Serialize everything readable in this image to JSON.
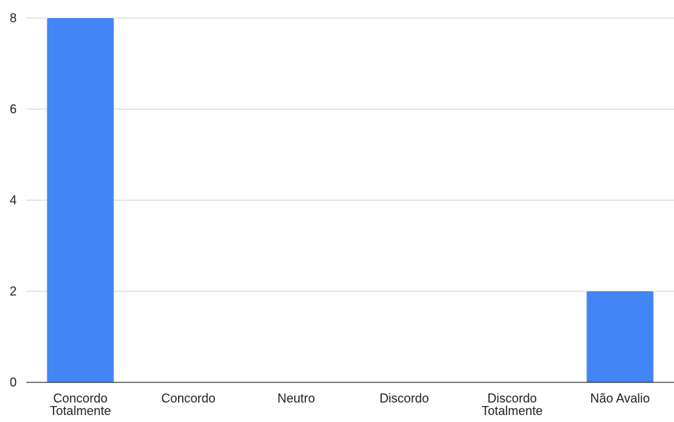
{
  "chart_data": {
    "type": "bar",
    "title": "",
    "xlabel": "",
    "ylabel": "",
    "categories": [
      [
        "Concordo",
        "Totalmente"
      ],
      [
        "Concordo"
      ],
      [
        "Neutro"
      ],
      [
        "Discordo"
      ],
      [
        "Discordo",
        "Totalmente"
      ],
      [
        "Não Avalio"
      ]
    ],
    "values": [
      8,
      0,
      0,
      0,
      0,
      2
    ],
    "ylim": [
      0,
      8
    ],
    "yticks": [
      0,
      2,
      4,
      6,
      8
    ],
    "grid": true,
    "legend": "none",
    "bar_color": "#4285f4",
    "grid_color": "#cccccc",
    "axis_color": "#333333"
  }
}
